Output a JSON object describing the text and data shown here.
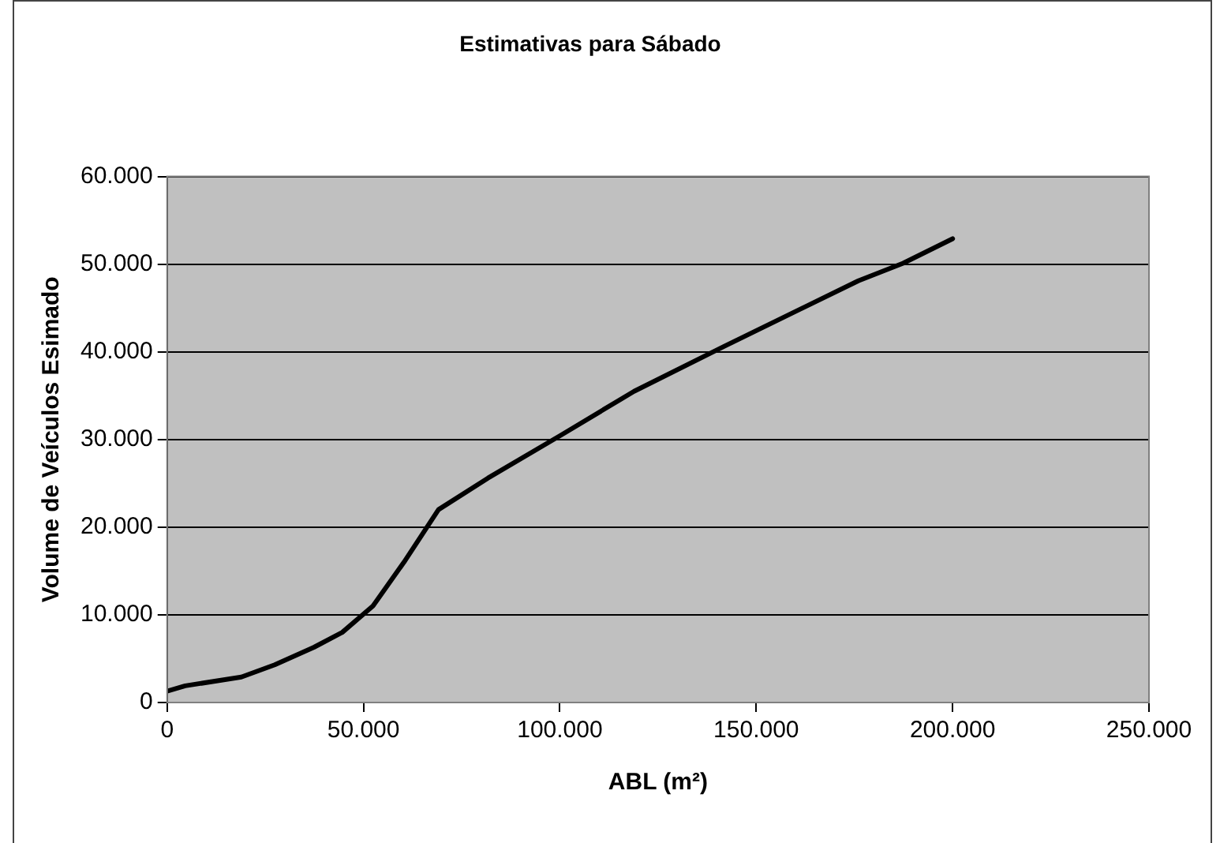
{
  "chart_data": {
    "type": "line",
    "title": "Estimativas para Sábado",
    "xlabel": "ABL (m²)",
    "ylabel": "Volume de Veículos Esimado",
    "x": [
      0,
      4600,
      18900,
      27400,
      37400,
      44600,
      52400,
      60300,
      69100,
      81700,
      100300,
      118900,
      141700,
      176000,
      187400,
      200000
    ],
    "series": [
      {
        "color": "#000000",
        "values": [
          1300,
          1900,
          2900,
          4300,
          6300,
          8000,
          11000,
          16000,
          22000,
          25600,
          30500,
          35500,
          40600,
          48100,
          50100,
          52900
        ]
      }
    ],
    "xlim": [
      0,
      250000
    ],
    "xticks": [
      0,
      {
        "value": 50000,
        "label": "50.000"
      },
      {
        "value": 100000,
        "label": "100.000"
      },
      {
        "value": 150000,
        "label": "150.000"
      },
      {
        "value": 200000,
        "label": "200.000"
      },
      {
        "value": 250000,
        "label": "250.000"
      }
    ],
    "ylim": [
      0,
      60000
    ],
    "yticks": [
      0,
      {
        "value": 10000,
        "label": "10.000"
      },
      {
        "value": 20000,
        "label": "20.000"
      },
      {
        "value": 30000,
        "label": "30.000"
      },
      {
        "value": 40000,
        "label": "40.000"
      },
      {
        "value": 50000,
        "label": "50.000"
      },
      {
        "value": 60000,
        "label": "60.000"
      }
    ],
    "grid": "y",
    "legend": false,
    "marker": "none",
    "line_style": "solid"
  }
}
